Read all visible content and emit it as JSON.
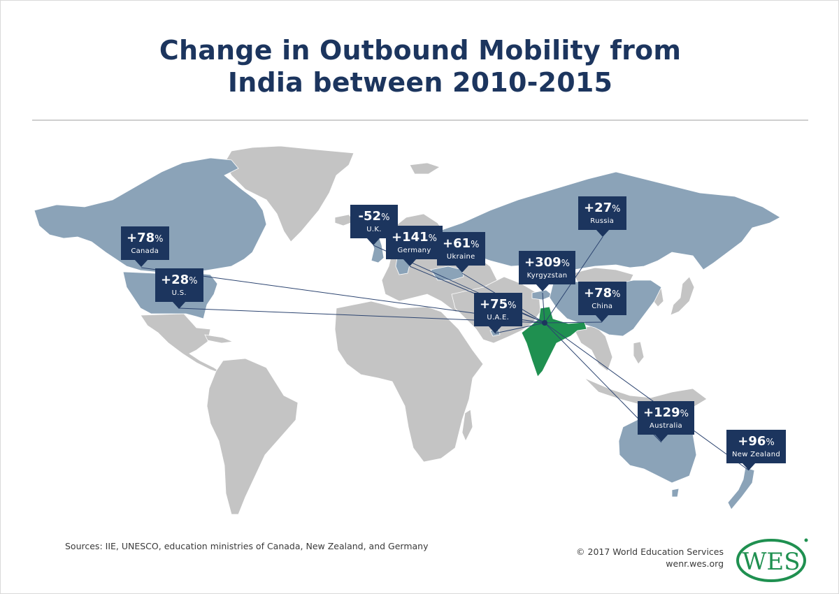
{
  "title": {
    "line1": "Change in Outbound Mobility from",
    "line2": "India between 2010-2015"
  },
  "colors": {
    "title": "#1c355e",
    "callout": "#1c355e",
    "highlighted_country": "#8ba3b8",
    "other_land": "#c4c4c4",
    "origin_country": "#1f9050",
    "connector_line": "#2c4470",
    "logo_green": "#1f9050"
  },
  "map": {
    "origin": "India",
    "destinations": [
      {
        "country": "Canada",
        "change": "+78",
        "unit": "%"
      },
      {
        "country": "U.S.",
        "change": "+28",
        "unit": "%"
      },
      {
        "country": "U.K.",
        "change": "-52",
        "unit": "%"
      },
      {
        "country": "Germany",
        "change": "+141",
        "unit": "%"
      },
      {
        "country": "Ukraine",
        "change": "+61",
        "unit": "%"
      },
      {
        "country": "Russia",
        "change": "+27",
        "unit": "%"
      },
      {
        "country": "Kyrgyzstan",
        "change": "+309",
        "unit": "%"
      },
      {
        "country": "U.A.E.",
        "change": "+75",
        "unit": "%"
      },
      {
        "country": "China",
        "change": "+78",
        "unit": "%"
      },
      {
        "country": "Australia",
        "change": "+129",
        "unit": "%"
      },
      {
        "country": "New Zealand",
        "change": "+96",
        "unit": "%"
      }
    ]
  },
  "chart_data": {
    "type": "map",
    "title": "Change in Outbound Mobility from India between 2010-2015",
    "origin": "India",
    "unit": "% change",
    "categories": [
      "Canada",
      "U.S.",
      "U.K.",
      "Germany",
      "Ukraine",
      "Russia",
      "Kyrgyzstan",
      "U.A.E.",
      "China",
      "Australia",
      "New Zealand"
    ],
    "values": [
      78,
      28,
      -52,
      141,
      61,
      27,
      309,
      75,
      78,
      129,
      96
    ]
  },
  "footer": {
    "sources": "Sources: IIE, UNESCO, education ministries of Canada, New Zealand, and Germany",
    "copyright": "© 2017 World Education Services",
    "website": "wenr.wes.org",
    "logo_text": "WES"
  }
}
